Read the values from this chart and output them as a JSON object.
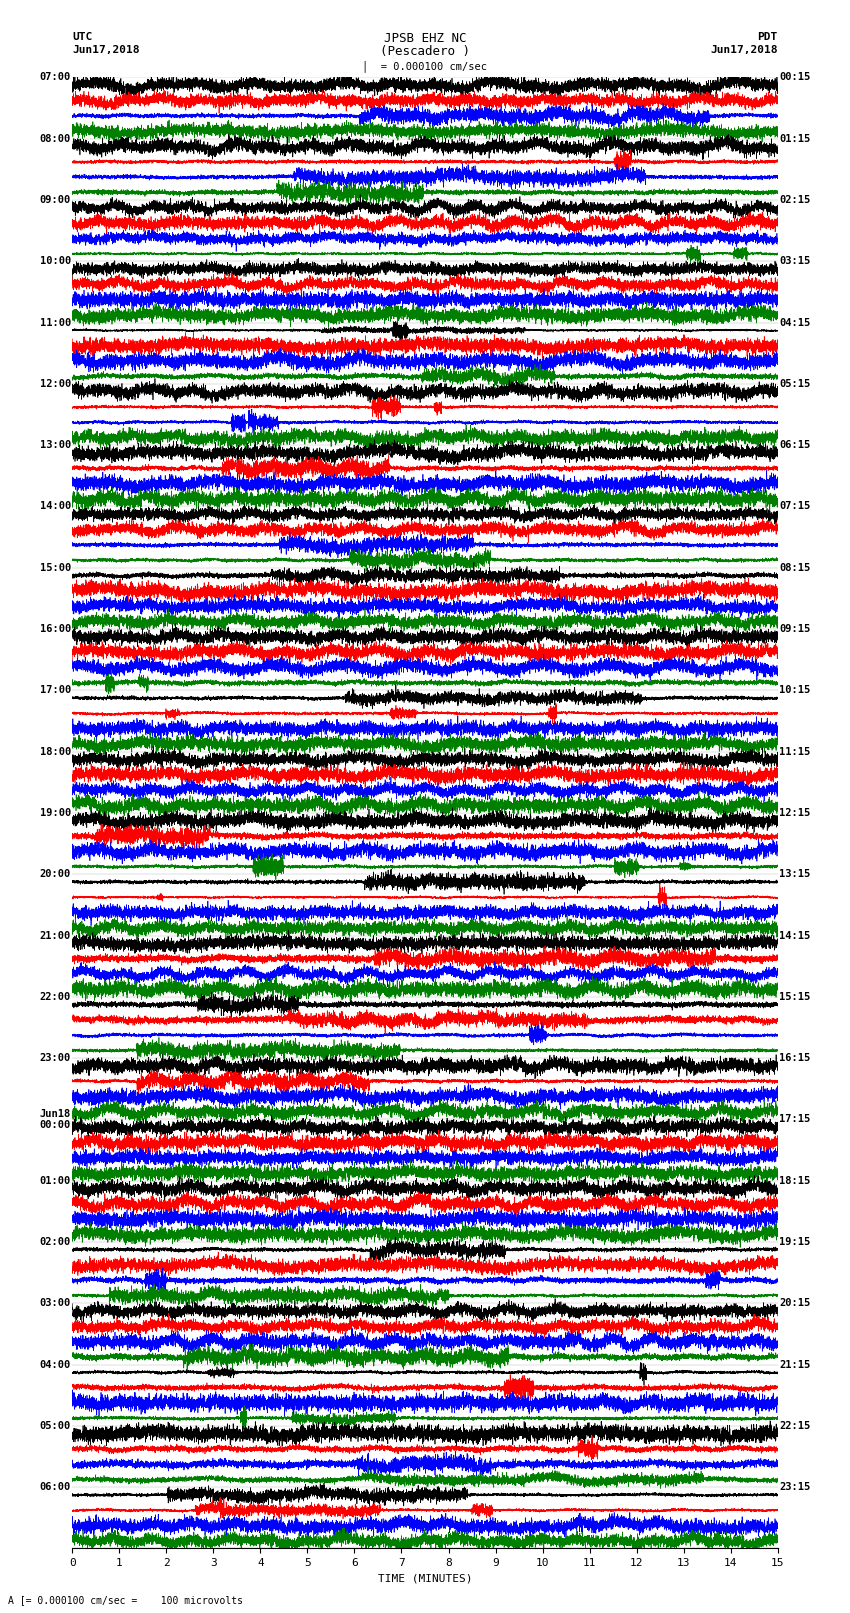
{
  "title_line1": "JPSB EHZ NC",
  "title_line2": "(Pescadero )",
  "scale_label": "= 0.000100 cm/sec",
  "bottom_label": "A [= 0.000100 cm/sec =    100 microvolts",
  "xlabel": "TIME (MINUTES)",
  "xmin": 0,
  "xmax": 15,
  "xticks": [
    0,
    1,
    2,
    3,
    4,
    5,
    6,
    7,
    8,
    9,
    10,
    11,
    12,
    13,
    14,
    15
  ],
  "bg_color": "#ffffff",
  "trace_colors": [
    "black",
    "red",
    "blue",
    "green"
  ],
  "left_times_utc": [
    "07:00",
    "08:00",
    "09:00",
    "10:00",
    "11:00",
    "12:00",
    "13:00",
    "14:00",
    "15:00",
    "16:00",
    "17:00",
    "18:00",
    "19:00",
    "20:00",
    "21:00",
    "22:00",
    "23:00",
    "Jun18\n00:00",
    "01:00",
    "02:00",
    "03:00",
    "04:00",
    "05:00",
    "06:00"
  ],
  "right_times_pdt": [
    "00:15",
    "01:15",
    "02:15",
    "03:15",
    "04:15",
    "05:15",
    "06:15",
    "07:15",
    "08:15",
    "09:15",
    "10:15",
    "11:15",
    "12:15",
    "13:15",
    "14:15",
    "15:15",
    "16:15",
    "17:15",
    "18:15",
    "19:15",
    "20:15",
    "21:15",
    "22:15",
    "23:15"
  ],
  "num_hour_groups": 24,
  "noise_seed": 42,
  "figsize": [
    8.5,
    16.13
  ],
  "dpi": 100
}
